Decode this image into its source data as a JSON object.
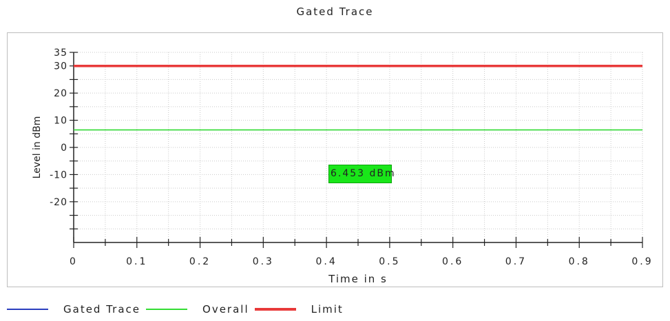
{
  "chart_data": {
    "type": "line",
    "title": "Gated Trace",
    "xlabel": "Time in s",
    "ylabel": "Level in dBm",
    "xlim": [
      0,
      0.9
    ],
    "ylim": [
      -35,
      35
    ],
    "xticks": [
      "0",
      "0.1",
      "0.2",
      "0.3",
      "0.4",
      "0.5",
      "0.6",
      "0.7",
      "0.8",
      "0.9"
    ],
    "yticks": [
      "35",
      "30",
      "20",
      "10",
      "0",
      "-10",
      "-20"
    ],
    "grid": true,
    "legend_placement": "bottom",
    "series": [
      {
        "name": "Gated Trace",
        "color": "#2b3fbf",
        "x": [
          0,
          0.9
        ],
        "y": [
          6.453,
          6.453
        ]
      },
      {
        "name": "Overall",
        "color": "#33dd33",
        "x": [
          0,
          0.9
        ],
        "y": [
          6.453,
          6.453
        ]
      },
      {
        "name": "Limit",
        "color": "#e83a3a",
        "x": [
          0,
          0.9
        ],
        "y": [
          30,
          30
        ]
      }
    ],
    "annotations": [
      {
        "text": "6.453 dBm",
        "x": 0.45,
        "y": -10
      }
    ]
  }
}
